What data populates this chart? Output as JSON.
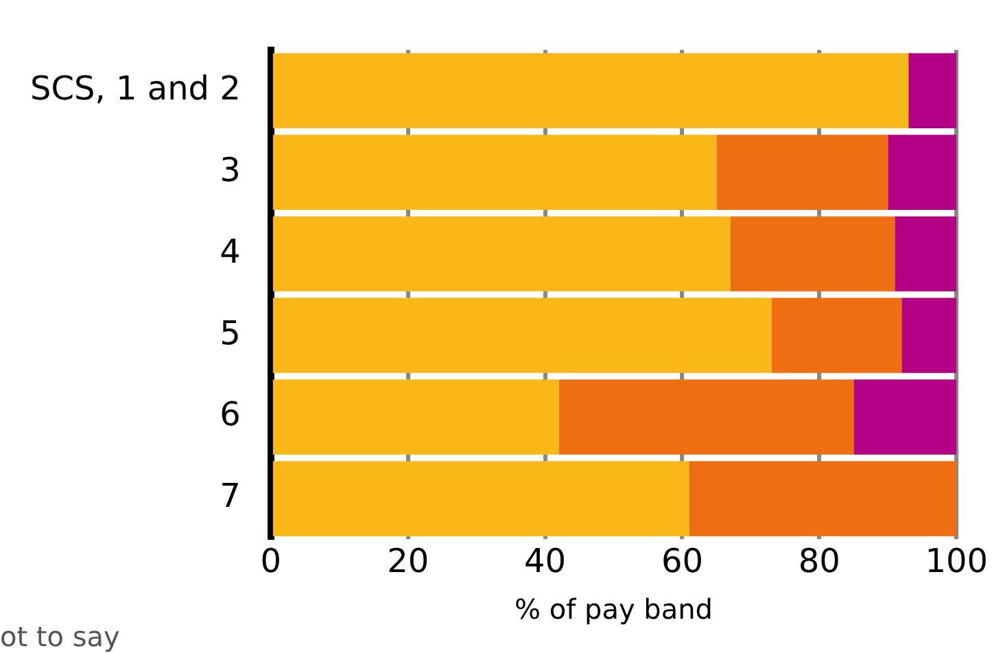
{
  "chart_data": {
    "type": "bar",
    "orientation": "horizontal",
    "stacked": true,
    "xlabel": "% of pay band",
    "categories": [
      "SCS, 1 and 2",
      "3",
      "4",
      "5",
      "6",
      "7"
    ],
    "series": [
      {
        "color": "#f9b817",
        "values": [
          93,
          65,
          67,
          73,
          42,
          61
        ]
      },
      {
        "color": "#ef6e11",
        "values": [
          null,
          25,
          24,
          19,
          43,
          39
        ]
      },
      {
        "color": "#b30085",
        "values": [
          7,
          10,
          9,
          8,
          15,
          null
        ]
      }
    ],
    "xlim": [
      0,
      100
    ],
    "xticks": [
      0,
      20,
      40,
      60,
      80,
      100
    ],
    "grid": "x",
    "legend": false,
    "annotations": [
      "ot to say"
    ]
  }
}
